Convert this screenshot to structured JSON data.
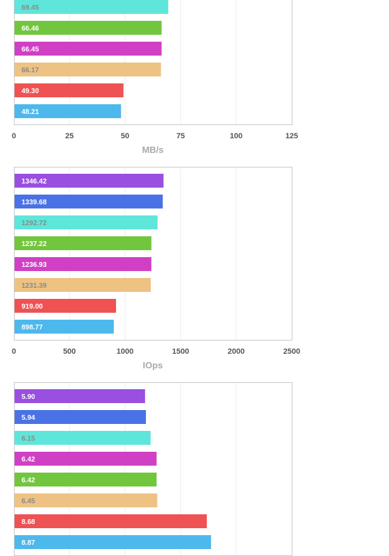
{
  "colors": {
    "purple": "#9a4fe0",
    "blue": "#4a72e6",
    "cyan": "#5ee6da",
    "green": "#72c63d",
    "magenta": "#d040c4",
    "tan": "#edc282",
    "red": "#ef5253",
    "sky": "#4db8ec",
    "label_light": "#ffffff",
    "label_dark": "#8a8a8a"
  },
  "chart_data": [
    {
      "type": "bar",
      "orientation": "horizontal",
      "xlabel": "MB/s",
      "xlim": [
        0,
        125
      ],
      "xticks": [
        "0",
        "25",
        "50",
        "75",
        "100",
        "125"
      ],
      "grid": true,
      "bars": [
        {
          "value": 69.45,
          "label": "69.45",
          "color": "cyan"
        },
        {
          "value": 66.46,
          "label": "66.46",
          "color": "green"
        },
        {
          "value": 66.45,
          "label": "66.45",
          "color": "magenta"
        },
        {
          "value": 66.17,
          "label": "66.17",
          "color": "tan"
        },
        {
          "value": 49.3,
          "label": "49.30",
          "color": "red"
        },
        {
          "value": 48.21,
          "label": "48.21",
          "color": "sky"
        }
      ]
    },
    {
      "type": "bar",
      "orientation": "horizontal",
      "xlabel": "IOps",
      "xlim": [
        0,
        2500
      ],
      "xticks": [
        "0",
        "500",
        "1000",
        "1500",
        "2000",
        "2500"
      ],
      "grid": true,
      "bars": [
        {
          "value": 1346.42,
          "label": "1346.42",
          "color": "purple"
        },
        {
          "value": 1339.68,
          "label": "1339.68",
          "color": "blue"
        },
        {
          "value": 1292.72,
          "label": "1292.72",
          "color": "cyan"
        },
        {
          "value": 1237.22,
          "label": "1237.22",
          "color": "green"
        },
        {
          "value": 1236.93,
          "label": "1236.93",
          "color": "magenta"
        },
        {
          "value": 1231.39,
          "label": "1231.39",
          "color": "tan"
        },
        {
          "value": 919.0,
          "label": "919.00",
          "color": "red"
        },
        {
          "value": 898.77,
          "label": "898.77",
          "color": "sky"
        }
      ]
    },
    {
      "type": "bar",
      "orientation": "horizontal",
      "xlabel": "",
      "xlim": [
        0,
        12.5
      ],
      "xticks": [],
      "grid": true,
      "bars": [
        {
          "value": 5.9,
          "label": "5.90",
          "color": "purple"
        },
        {
          "value": 5.94,
          "label": "5.94",
          "color": "blue"
        },
        {
          "value": 6.15,
          "label": "6.15",
          "color": "cyan"
        },
        {
          "value": 6.42,
          "label": "6.42",
          "color": "magenta"
        },
        {
          "value": 6.42,
          "label": "6.42",
          "color": "green"
        },
        {
          "value": 6.45,
          "label": "6.45",
          "color": "tan"
        },
        {
          "value": 8.68,
          "label": "8.68",
          "color": "red"
        },
        {
          "value": 8.87,
          "label": "8.87",
          "color": "sky"
        }
      ]
    }
  ]
}
